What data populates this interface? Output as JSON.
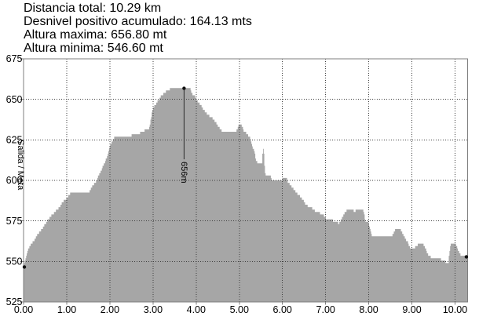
{
  "stats": {
    "lines": [
      "Distancia total: 10.29 km",
      "Desnivel positivo acumulado: 164.13 mts",
      "Altura maxima: 656.80 mt",
      "Altura minima: 546.60 mt"
    ]
  },
  "colors": {
    "background": "#ffffff",
    "area_fill": "#a6a6a6",
    "frame": "#7f7f7f",
    "grid": "#3f3f3f",
    "annotation": "#2a2a2a",
    "marker": "#111111",
    "text": "#000000"
  },
  "chart_data": {
    "type": "area",
    "title": "",
    "xlabel": "",
    "ylabel": "",
    "x_units": "km",
    "y_units": "m",
    "x_range": [
      0,
      10.29
    ],
    "y_range": [
      525,
      675
    ],
    "grid": "dotted",
    "x_tick_labels": [
      "0.00",
      "1.00",
      "2.00",
      "3.00",
      "4.00",
      "5.00",
      "6.00",
      "7.00",
      "8.00",
      "9.00",
      "10.00"
    ],
    "x_tick_values": [
      0,
      1,
      2,
      3,
      4,
      5,
      6,
      7,
      8,
      9,
      10
    ],
    "y_tick_labels": [
      "675",
      "650",
      "625",
      "600",
      "575",
      "550",
      "525"
    ],
    "y_tick_values": [
      675,
      650,
      625,
      600,
      575,
      550,
      525
    ],
    "grid_x_values": [
      1,
      2,
      3,
      4,
      5,
      6,
      7,
      8,
      9,
      10
    ],
    "grid_y_values": [
      650,
      625,
      600,
      575,
      550
    ],
    "start_finish_label": "Salida / Meta",
    "annotation": {
      "label": "656m",
      "km": 3.72,
      "altitude": 656.8,
      "line_bottom_altitude": 613
    },
    "markers": [
      {
        "name": "start",
        "km": 0,
        "altitude": 546.6
      },
      {
        "name": "peak",
        "km": 3.72,
        "altitude": 656.8
      },
      {
        "name": "end",
        "km": 10.29,
        "altitude": 552.8
      }
    ],
    "quantize_step_m": 1.5,
    "profile": [
      [
        0.0,
        546.6
      ],
      [
        0.02,
        549
      ],
      [
        0.05,
        553
      ],
      [
        0.08,
        556
      ],
      [
        0.12,
        558.5
      ],
      [
        0.17,
        561
      ],
      [
        0.23,
        562.6
      ],
      [
        0.28,
        565
      ],
      [
        0.34,
        567.5
      ],
      [
        0.4,
        569.1
      ],
      [
        0.46,
        571.6
      ],
      [
        0.52,
        574
      ],
      [
        0.58,
        576.5
      ],
      [
        0.64,
        578.1
      ],
      [
        0.7,
        580
      ],
      [
        0.75,
        581.4
      ],
      [
        0.81,
        583
      ],
      [
        0.86,
        585
      ],
      [
        0.92,
        587.2
      ],
      [
        0.98,
        588.8
      ],
      [
        1.04,
        590.5
      ],
      [
        1.08,
        592
      ],
      [
        1.5,
        592
      ],
      [
        1.54,
        594.3
      ],
      [
        1.6,
        596.7
      ],
      [
        1.65,
        598.5
      ],
      [
        1.7,
        600.8
      ],
      [
        1.75,
        604
      ],
      [
        1.81,
        607.3
      ],
      [
        1.87,
        610.5
      ],
      [
        1.92,
        614
      ],
      [
        1.97,
        618
      ],
      [
        2.02,
        622.7
      ],
      [
        2.07,
        625.5
      ],
      [
        2.11,
        627
      ],
      [
        2.48,
        627
      ],
      [
        2.52,
        628.4
      ],
      [
        2.57,
        629.2
      ],
      [
        2.69,
        629.2
      ],
      [
        2.73,
        630.1
      ],
      [
        2.79,
        630.4
      ],
      [
        2.83,
        631.7
      ],
      [
        2.9,
        632
      ],
      [
        2.94,
        637
      ],
      [
        2.98,
        644
      ],
      [
        3.03,
        646
      ],
      [
        3.08,
        647.5
      ],
      [
        3.13,
        650
      ],
      [
        3.2,
        652.5
      ],
      [
        3.28,
        654.5
      ],
      [
        3.36,
        656
      ],
      [
        3.43,
        656.8
      ],
      [
        3.85,
        656.8
      ],
      [
        3.91,
        653.2
      ],
      [
        3.97,
        651.6
      ],
      [
        4.06,
        647.6
      ],
      [
        4.13,
        645.2
      ],
      [
        4.19,
        642.7
      ],
      [
        4.25,
        641.1
      ],
      [
        4.31,
        639.5
      ],
      [
        4.37,
        638.4
      ],
      [
        4.43,
        636.3
      ],
      [
        4.49,
        633.9
      ],
      [
        4.55,
        631.5
      ],
      [
        4.6,
        630
      ],
      [
        4.9,
        630
      ],
      [
        4.94,
        631.5
      ],
      [
        4.98,
        634.5
      ],
      [
        5.04,
        634.7
      ],
      [
        5.09,
        631
      ],
      [
        5.13,
        629.9
      ],
      [
        5.18,
        628
      ],
      [
        5.22,
        627.5
      ],
      [
        5.25,
        625
      ],
      [
        5.28,
        622.6
      ],
      [
        5.31,
        620.2
      ],
      [
        5.34,
        617.7
      ],
      [
        5.38,
        613
      ],
      [
        5.42,
        610.2
      ],
      [
        5.52,
        610
      ],
      [
        5.54,
        619.4
      ],
      [
        5.56,
        619
      ],
      [
        5.59,
        605
      ],
      [
        5.61,
        603.2
      ],
      [
        5.72,
        602.9
      ],
      [
        5.74,
        600.3
      ],
      [
        5.99,
        600.3
      ],
      [
        6.02,
        601.9
      ],
      [
        6.08,
        601.5
      ],
      [
        6.12,
        599
      ],
      [
        6.18,
        597
      ],
      [
        6.25,
        594.5
      ],
      [
        6.35,
        591.5
      ],
      [
        6.45,
        588.5
      ],
      [
        6.55,
        584.5
      ],
      [
        6.67,
        583.1
      ],
      [
        6.76,
        580.6
      ],
      [
        6.86,
        579.8
      ],
      [
        6.95,
        578.2
      ],
      [
        7.0,
        576.6
      ],
      [
        7.1,
        575.8
      ],
      [
        7.19,
        575
      ],
      [
        7.25,
        574.2
      ],
      [
        7.31,
        573.4
      ],
      [
        7.4,
        578.2
      ],
      [
        7.46,
        580.6
      ],
      [
        7.49,
        581.4
      ],
      [
        7.63,
        581.8
      ],
      [
        7.66,
        580.5
      ],
      [
        7.7,
        581.8
      ],
      [
        7.86,
        581.8
      ],
      [
        7.92,
        575
      ],
      [
        7.98,
        573.9
      ],
      [
        8.03,
        569.4
      ],
      [
        8.07,
        566.1
      ],
      [
        8.28,
        565.6
      ],
      [
        8.5,
        564.8
      ],
      [
        8.55,
        566.5
      ],
      [
        8.61,
        569.4
      ],
      [
        8.74,
        569.4
      ],
      [
        8.77,
        567.9
      ],
      [
        8.83,
        564.5
      ],
      [
        8.89,
        562.1
      ],
      [
        8.97,
        557.7
      ],
      [
        9.03,
        557.7
      ],
      [
        9.08,
        559.4
      ],
      [
        9.13,
        560.4
      ],
      [
        9.17,
        561.4
      ],
      [
        9.25,
        561.4
      ],
      [
        9.33,
        556.4
      ],
      [
        9.4,
        552.8
      ],
      [
        9.55,
        552.5
      ],
      [
        9.65,
        551.5
      ],
      [
        9.71,
        550
      ],
      [
        9.84,
        549.5
      ],
      [
        9.88,
        559.6
      ],
      [
        9.92,
        561.3
      ],
      [
        10.0,
        561.7
      ],
      [
        10.07,
        556.4
      ],
      [
        10.1,
        554.8
      ],
      [
        10.16,
        553.2
      ],
      [
        10.29,
        552.8
      ]
    ]
  }
}
